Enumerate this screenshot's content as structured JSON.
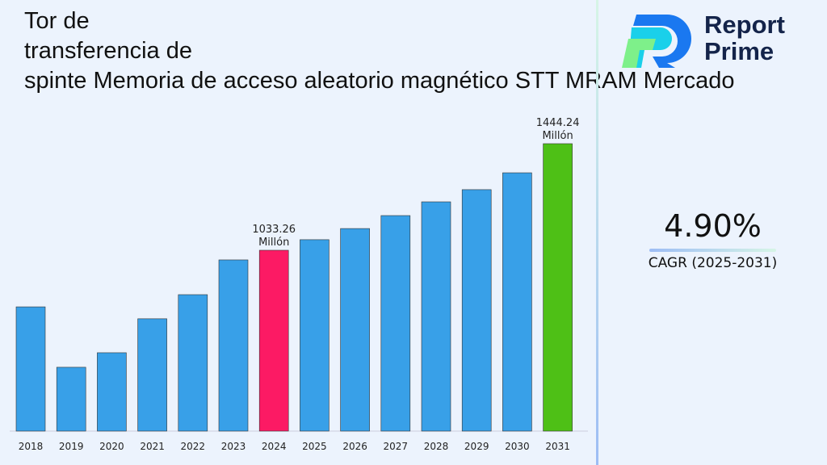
{
  "title": "Tor de\ntransferencia de\nspinte Memoria de acceso aleatorio magnético STT MRAM Mercado",
  "logo": {
    "text_line1": "Report",
    "text_line2": "Prime"
  },
  "cagr": {
    "value": "4.90%",
    "label": "CAGR (2025-2031)"
  },
  "chart_data": {
    "type": "bar",
    "categories": [
      "2018",
      "2019",
      "2020",
      "2021",
      "2022",
      "2023",
      "2024",
      "2025",
      "2026",
      "2027",
      "2028",
      "2029",
      "2030",
      "2031"
    ],
    "values": [
      815,
      582,
      638,
      769,
      862,
      996,
      1033.26,
      1074,
      1117,
      1167,
      1220,
      1267,
      1332,
      1444.24
    ],
    "data_labels": {
      "6": [
        "1033.26",
        "Millón"
      ],
      "13": [
        "1444.24",
        "Millón"
      ]
    },
    "colors": {
      "default": "#38a0e8",
      "highlight_2024": "#fc1a64",
      "highlight_2031": "#4ec016"
    },
    "grid": false,
    "legend": "none"
  }
}
